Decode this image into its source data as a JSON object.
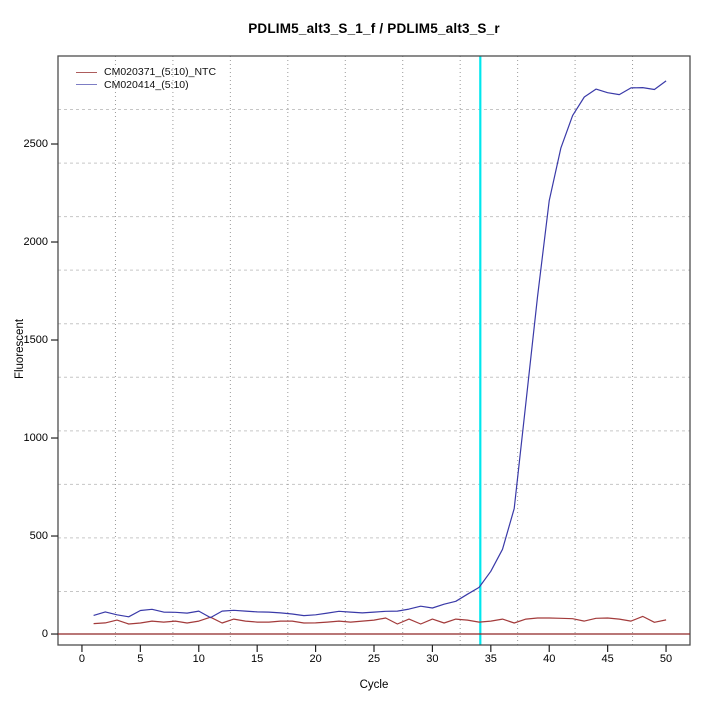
{
  "title": "PDLIM5_alt3_S_1_f / PDLIM5_alt3_S_r",
  "axes": {
    "x_label": "Cycle",
    "y_label": "Fluorescent"
  },
  "legend": {
    "items": [
      {
        "label": "CM020371_(5:10)_NTC",
        "swatch_color": "#ad5c5c"
      },
      {
        "label": "CM020414_(5:10)",
        "swatch_color": "#7d7dc4"
      }
    ]
  },
  "colors": {
    "ntc_line": "#a33b3b",
    "sample_line": "#3a3aa8",
    "threshold_line": "#8f2626",
    "ct_marker_line": "#00e7ee",
    "grid_vertical": "#9a9a9a",
    "grid_horizontal": "#c6c6c6",
    "plot_border": "#4d4d4d",
    "tick": "#222222"
  },
  "chart_data": {
    "type": "line",
    "title": "PDLIM5_alt3_S_1_f / PDLIM5_alt3_S_r",
    "xlabel": "Cycle",
    "ylabel": "Fluorescent",
    "xlim": [
      -2.05,
      52.05
    ],
    "ylim": [
      -56,
      2949
    ],
    "xticks": [
      0,
      5,
      10,
      15,
      20,
      25,
      30,
      35,
      40,
      45,
      50
    ],
    "yticks": [
      0,
      500,
      1000,
      1500,
      2000,
      2500
    ],
    "grid": {
      "on": true,
      "equal_divisions": 11,
      "style": "dotted-gray"
    },
    "legend_position": "top-left-inside",
    "cycles": [
      1,
      2,
      3,
      4,
      5,
      6,
      7,
      8,
      9,
      10,
      11,
      12,
      13,
      14,
      15,
      16,
      17,
      18,
      19,
      20,
      21,
      22,
      23,
      24,
      25,
      26,
      27,
      28,
      29,
      30,
      31,
      32,
      33,
      34,
      35,
      36,
      37,
      38,
      39,
      40,
      41,
      42,
      43,
      44,
      45,
      46,
      47,
      48,
      49,
      50
    ],
    "series": [
      {
        "name": "CM020371_(5:10)_NTC",
        "values": [
          53,
          57,
          71,
          51,
          56,
          66,
          61,
          66,
          56,
          66,
          86,
          56,
          76,
          66,
          61,
          61,
          66,
          66,
          56,
          57,
          61,
          66,
          61,
          66,
          71,
          82,
          51,
          76,
          51,
          76,
          56,
          76,
          71,
          61,
          66,
          76,
          56,
          76,
          82,
          82,
          80,
          78,
          66,
          80,
          82,
          76,
          66,
          90,
          60,
          72
        ]
      },
      {
        "name": "CM020414_(5:10)",
        "values": [
          95,
          113,
          98,
          88,
          120,
          126,
          112,
          111,
          107,
          117,
          84,
          117,
          121,
          117,
          113,
          112,
          108,
          102,
          94,
          98,
          107,
          116,
          112,
          108,
          112,
          116,
          117,
          127,
          142,
          133,
          152,
          167,
          203,
          238,
          320,
          432,
          640,
          1180,
          1720,
          2210,
          2480,
          2645,
          2740,
          2780,
          2762,
          2752,
          2786,
          2788,
          2778,
          2822
        ]
      }
    ],
    "annotations": {
      "threshold_line_y": 0,
      "ct_marker_cycle": 34.1
    }
  }
}
